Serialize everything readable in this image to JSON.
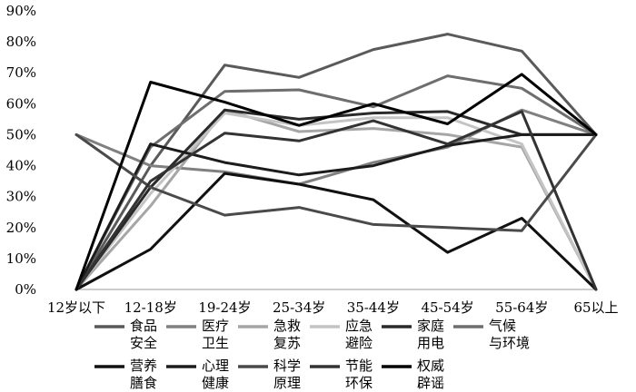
{
  "chart_data": {
    "type": "line",
    "title": "",
    "xlabel": "",
    "ylabel": "",
    "categories": [
      "12岁以下",
      "12-18岁",
      "19-24岁",
      "25-34岁",
      "35-44岁",
      "45-54岁",
      "55-64岁",
      "65以上"
    ],
    "y_ticks": [
      "0%",
      "10%",
      "20%",
      "30%",
      "40%",
      "50%",
      "60%",
      "70%",
      "80%",
      "90%"
    ],
    "ylim": [
      0,
      90
    ],
    "grid": false,
    "legend_position": "bottom",
    "series": [
      {
        "name": "食品安全",
        "legend_lines": [
          "食品",
          "安全"
        ],
        "color": "#5a5a5a",
        "values": [
          0,
          40,
          72.5,
          68.5,
          77.5,
          82.5,
          77,
          50
        ]
      },
      {
        "name": "医疗卫生",
        "legend_lines": [
          "医疗",
          "卫生"
        ],
        "color": "#808080",
        "values": [
          50,
          40,
          38,
          34,
          41,
          46,
          58,
          50
        ]
      },
      {
        "name": "急救复苏",
        "legend_lines": [
          "急救",
          "复苏"
        ],
        "color": "#a6a6a6",
        "values": [
          0,
          27,
          58,
          51,
          52,
          50,
          46,
          0
        ]
      },
      {
        "name": "应急避险",
        "legend_lines": [
          "应急",
          "避险"
        ],
        "color": "#c4c4c4",
        "values": [
          0,
          31,
          57,
          53,
          55.5,
          55.5,
          47,
          0
        ]
      },
      {
        "name": "家庭用电",
        "legend_lines": [
          "家庭",
          "用电"
        ],
        "color": "#2a2a2a",
        "values": [
          0,
          33,
          58,
          55,
          57,
          57.5,
          50,
          50
        ]
      },
      {
        "name": "气候与环境",
        "legend_lines": [
          "气候",
          "与环境"
        ],
        "color": "#6e6e6e",
        "values": [
          0,
          46,
          64,
          64.5,
          59,
          69,
          65,
          50
        ]
      },
      {
        "name": "营养膳食",
        "legend_lines": [
          "营养",
          "膳食"
        ],
        "color": "#111111",
        "values": [
          0,
          13,
          37.5,
          34,
          29,
          12,
          23,
          0
        ]
      },
      {
        "name": "心理健康",
        "legend_lines": [
          "心理",
          "健康"
        ],
        "color": "#1c1c1c",
        "values": [
          0,
          47,
          41,
          37,
          40,
          46.5,
          50,
          50
        ]
      },
      {
        "name": "科学原理",
        "legend_lines": [
          "科学",
          "原理"
        ],
        "color": "#4a4a4a",
        "values": [
          50,
          33,
          24,
          26.5,
          21,
          20,
          19,
          50
        ]
      },
      {
        "name": "节能环保",
        "legend_lines": [
          "节能",
          "环保"
        ],
        "color": "#333333",
        "values": [
          0,
          35,
          50.5,
          48,
          54.5,
          47,
          57.5,
          0
        ]
      },
      {
        "name": "权威辟谣",
        "legend_lines": [
          "权威",
          "辟谣"
        ],
        "color": "#000000",
        "values": [
          0,
          67,
          60.5,
          53,
          60,
          53.5,
          69.5,
          50
        ]
      }
    ]
  }
}
